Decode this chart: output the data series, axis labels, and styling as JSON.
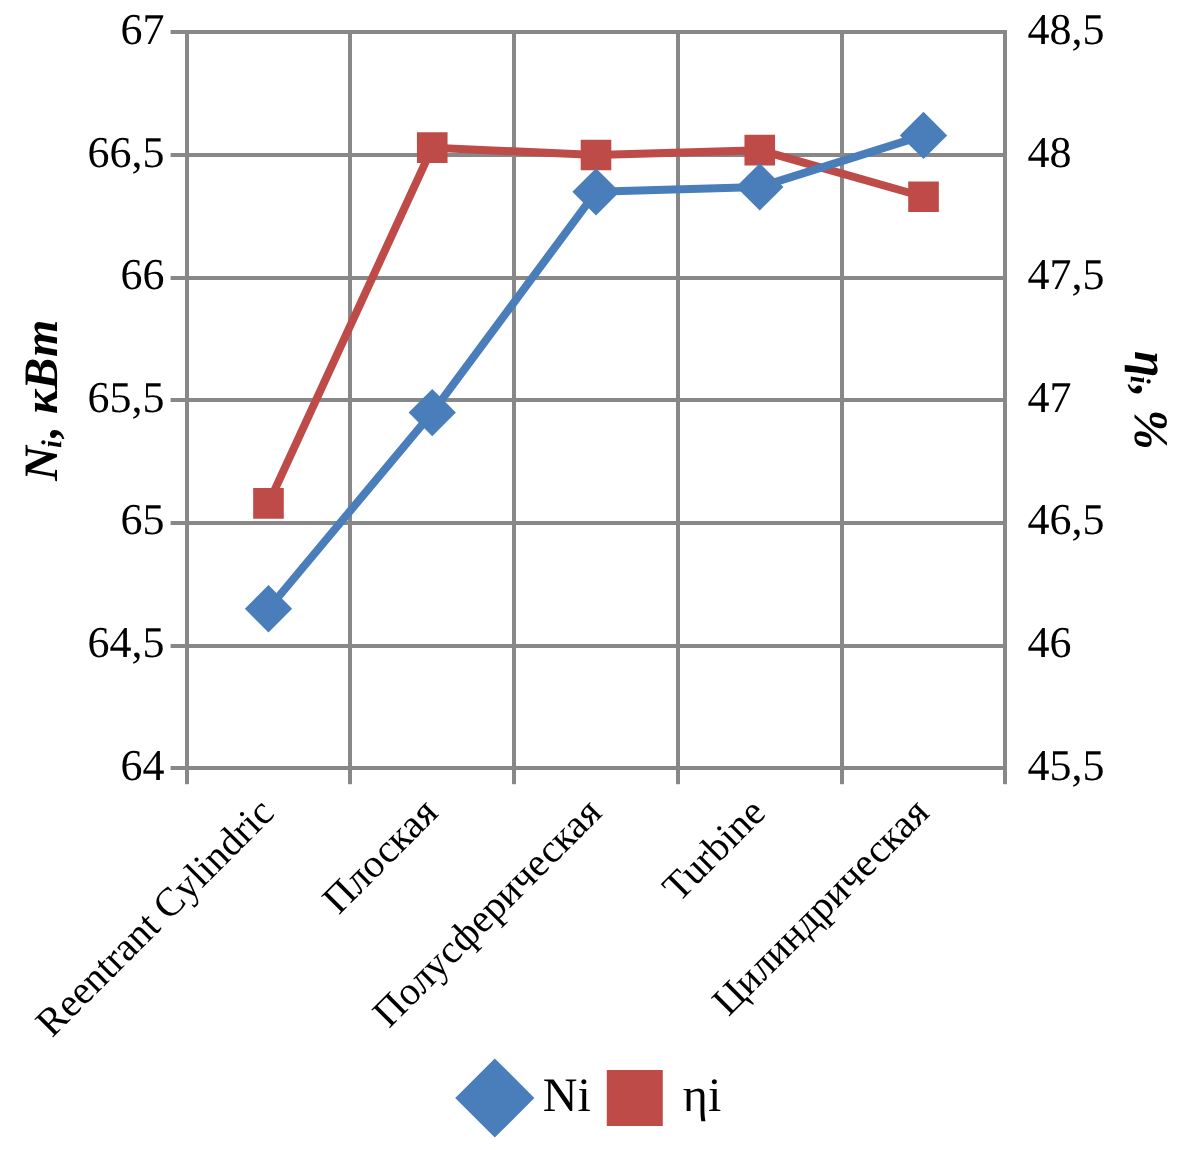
{
  "chart_data": {
    "type": "line",
    "ylabel": "Nᵢ, кВт",
    "y2label": "ηᵢ, %",
    "categories": [
      "Reentrant Cylindric",
      "Плоская",
      "Полусферическая",
      "Turbine",
      "Цилиндрическая"
    ],
    "series": [
      {
        "name": "Ni",
        "color": "#4a7ebb",
        "marker": "diamond",
        "values": [
          64.65,
          65.45,
          66.35,
          66.37,
          66.58
        ]
      },
      {
        "name": "ηi",
        "color": "#be4b48",
        "marker": "square",
        "axis": "y2",
        "values": [
          46.58,
          48.03,
          48.0,
          48.02,
          47.83
        ]
      }
    ],
    "ylim": [
      64,
      67
    ],
    "yticks": [
      {
        "value": 64,
        "label": "64"
      },
      {
        "value": 64.5,
        "label": "64,5"
      },
      {
        "value": 65,
        "label": "65"
      },
      {
        "value": 65.5,
        "label": "65,5"
      },
      {
        "value": 66,
        "label": "66"
      },
      {
        "value": 66.5,
        "label": "66,5"
      },
      {
        "value": 67,
        "label": "67"
      }
    ],
    "y2lim": [
      45.5,
      48.5
    ],
    "y2ticks": [
      {
        "value": 45.5,
        "label": "45,5"
      },
      {
        "value": 46,
        "label": "46"
      },
      {
        "value": 46.5,
        "label": "46,5"
      },
      {
        "value": 47,
        "label": "47"
      },
      {
        "value": 47.5,
        "label": "47,5"
      },
      {
        "value": 48,
        "label": "48"
      },
      {
        "value": 48.5,
        "label": "48,5"
      }
    ],
    "grid": true,
    "legend": "bottom",
    "line_style": "solid"
  }
}
